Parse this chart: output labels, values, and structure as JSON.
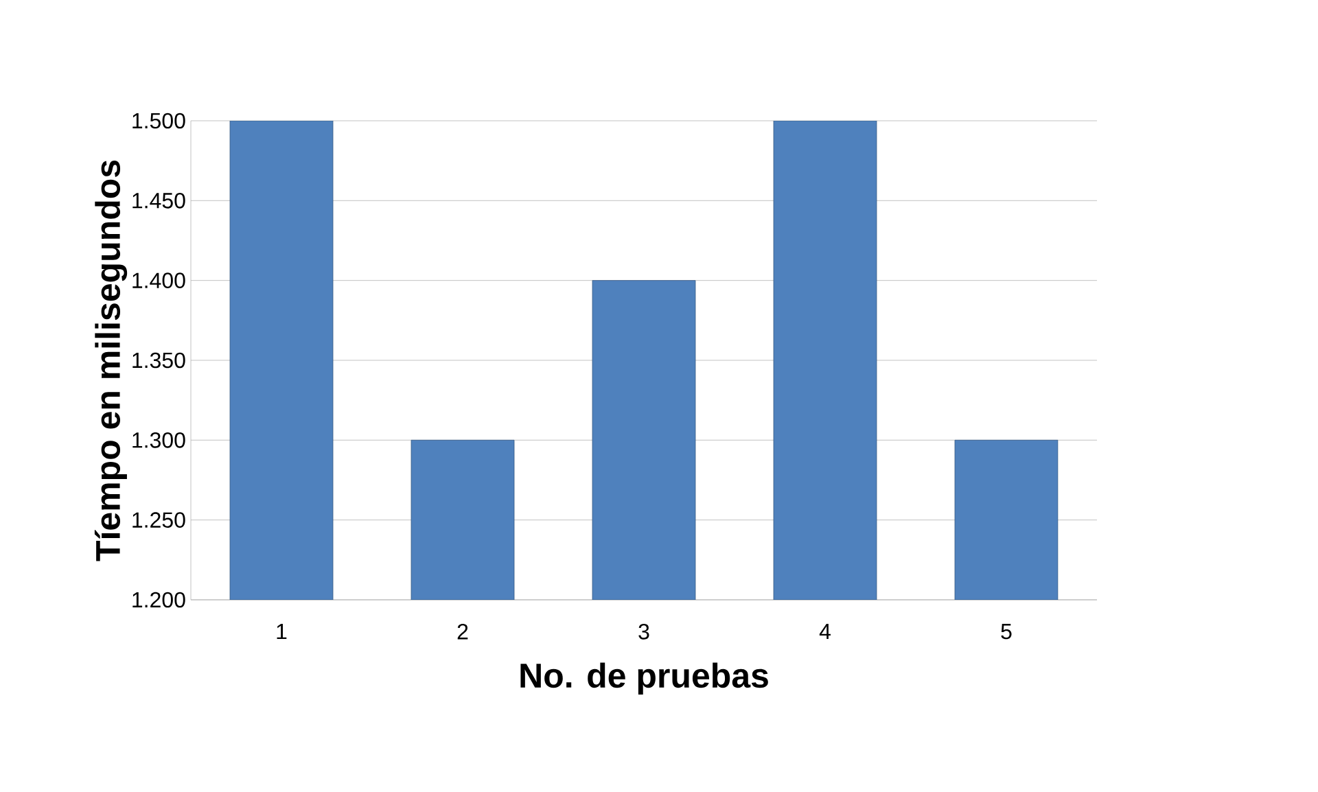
{
  "chart_data": {
    "type": "bar",
    "xlabel": "No. de pruebas",
    "ylabel": "Tíempo en milisegundos",
    "categories": [
      "1",
      "2",
      "3",
      "4",
      "5"
    ],
    "values": [
      1500,
      1300,
      1400,
      1500,
      1300
    ],
    "color": "#4f81bd",
    "ylim": [
      1200,
      1500
    ],
    "yticks": [
      {
        "value": 1200,
        "label": "1.200"
      },
      {
        "value": 1250,
        "label": "1.250"
      },
      {
        "value": 1300,
        "label": "1.300"
      },
      {
        "value": 1350,
        "label": "1.350"
      },
      {
        "value": 1400,
        "label": "1.400"
      },
      {
        "value": 1450,
        "label": "1.450"
      },
      {
        "value": 1500,
        "label": "1.500"
      }
    ],
    "grid": "y"
  }
}
